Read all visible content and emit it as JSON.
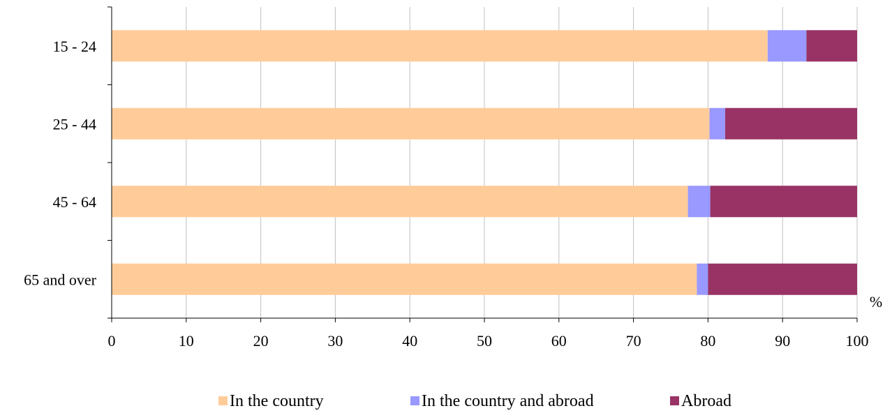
{
  "chart_data": {
    "type": "bar",
    "orientation": "horizontal",
    "stacked": true,
    "categories": [
      "15 - 24",
      "25 - 44",
      "45 - 64",
      "65 and over"
    ],
    "series": [
      {
        "name": "In the country",
        "values": [
          88.0,
          80.2,
          77.3,
          78.5
        ],
        "color": "#FFCC99"
      },
      {
        "name": "In the country and abroad",
        "values": [
          5.2,
          2.1,
          3.0,
          1.5
        ],
        "color": "#9999FF"
      },
      {
        "name": "Abroad",
        "values": [
          6.8,
          17.7,
          19.7,
          20.0
        ],
        "color": "#993366"
      }
    ],
    "x_ticks": [
      "0",
      "10",
      "20",
      "30",
      "40",
      "50",
      "60",
      "70",
      "80",
      "90",
      "100"
    ],
    "xlim": [
      0,
      100
    ],
    "x_unit": "%",
    "grid": "vertical",
    "legend_position": "bottom"
  }
}
